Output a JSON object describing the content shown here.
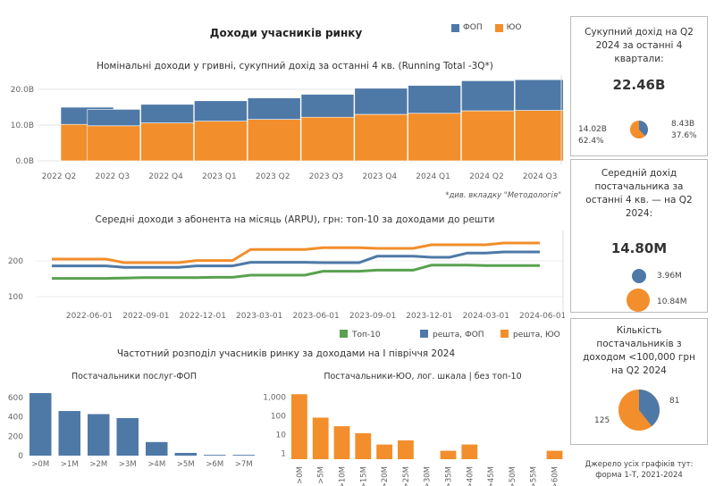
{
  "page": {
    "title": "Доходи учасників ринку",
    "legend": [
      {
        "label": "ФОП",
        "color": "#4e79a7"
      },
      {
        "label": "ЮО",
        "color": "#f28e2b"
      }
    ],
    "chart1_title": "Номінальні доходи у гривні, сукупний дохід за останні 4 кв. (Running Total -3Q*)",
    "chart1_note": "*див. вкладку \"Методологія\"",
    "chart2_title": "Середні доходи з  абонента на місяць (ARPU), грн: топ-10 за доходами до решти",
    "chart3_title": "Частотний розподіл учасників ринку за доходами на І півріччя 2024",
    "chart3a_title": "Постачальники послуг-ФОП",
    "chart3b_title": "Постачальники-ЮО, лог. шкала | без топ-10",
    "source": "Джерело усіх графіків тут: форма 1-Т, 2021-2024"
  },
  "kpi1": {
    "title": "Сукупний дохід на Q2 2024 за останні 4 квартали:",
    "value": "22.46B",
    "left_value": "14.02B",
    "left_pct": "62.4%",
    "right_value": "8.43B",
    "right_pct": "37.6%",
    "fop_share": 37.6
  },
  "kpi2": {
    "title": "Середній дохід постачальника за останні 4 кв. — на Q2 2024:",
    "value": "14.80M",
    "small_value": "3.96M",
    "large_value": "10.84M"
  },
  "kpi3": {
    "title": "Кількість постачальників з доходом <100,000 грн на Q2 2024",
    "fop_count": "81",
    "uo_count": "125"
  },
  "chart_data": [
    {
      "type": "bar",
      "stacked": true,
      "title": "Номінальні доходи у гривні, сукупний дохід за останні 4 кв. (Running Total -3Q*)",
      "categories": [
        "2022 Q2",
        "2022 Q3",
        "2022 Q4",
        "2023 Q1",
        "2023 Q2",
        "2023 Q3",
        "2023 Q4",
        "2024 Q1",
        "2024 Q2",
        "2024 Q3"
      ],
      "series": [
        {
          "name": "ЮО",
          "color": "#f28e2b",
          "values": [
            10.2,
            9.8,
            10.6,
            11.1,
            11.6,
            12.2,
            13.0,
            13.3,
            14.0,
            14.1
          ]
        },
        {
          "name": "ФОП",
          "color": "#4e79a7",
          "values": [
            4.8,
            4.6,
            5.2,
            5.7,
            6.0,
            6.4,
            7.3,
            7.8,
            8.4,
            8.6
          ]
        }
      ],
      "ylabel": "",
      "ytick_labels": [
        "0.0B",
        "10.0B",
        "20.0B"
      ],
      "yticks": [
        0,
        10,
        20
      ],
      "ylim": [
        0,
        23
      ]
    },
    {
      "type": "line",
      "title": "Середні доходи з  абонента на місяць (ARPU), грн: топ-10 за доходами до решти",
      "x_labels": [
        "2022-06-01",
        "2022-09-01",
        "2022-12-01",
        "2023-03-01",
        "2023-06-01",
        "2023-09-01",
        "2023-12-01",
        "2024-03-01",
        "2024-06-01"
      ],
      "x_points": [
        "2022-03",
        "2022-04",
        "2022-05",
        "2022-06",
        "2022-07",
        "2022-08",
        "2022-09",
        "2022-10",
        "2022-11",
        "2022-12",
        "2023-01",
        "2023-02",
        "2023-03",
        "2023-04",
        "2023-05",
        "2023-06",
        "2023-07",
        "2023-08",
        "2023-09",
        "2023-10",
        "2023-11",
        "2023-12",
        "2024-01",
        "2024-02",
        "2024-03",
        "2024-04",
        "2024-05",
        "2024-06"
      ],
      "series": [
        {
          "name": "Топ-10",
          "color": "#59a14f",
          "values": [
            151,
            151,
            151,
            151,
            152,
            153,
            153,
            153,
            153,
            154,
            154,
            160,
            160,
            160,
            160,
            171,
            171,
            171,
            174,
            174,
            174,
            188,
            188,
            188,
            187,
            187,
            187,
            187
          ]
        },
        {
          "name": "решта, ФОП",
          "color": "#4e79a7",
          "values": [
            186,
            186,
            186,
            186,
            182,
            182,
            182,
            182,
            186,
            186,
            186,
            196,
            196,
            196,
            196,
            195,
            195,
            195,
            213,
            213,
            213,
            210,
            210,
            222,
            222,
            225,
            225,
            225
          ]
        },
        {
          "name": "решта, ЮО",
          "color": "#f28e2b",
          "values": [
            205,
            205,
            205,
            205,
            195,
            195,
            195,
            195,
            201,
            201,
            201,
            232,
            232,
            232,
            232,
            237,
            237,
            237,
            235,
            235,
            235,
            245,
            245,
            245,
            245,
            250,
            250,
            250
          ]
        }
      ],
      "yticks": [
        100,
        200
      ],
      "ylim": [
        80,
        270
      ]
    },
    {
      "type": "bar",
      "title": "Постачальники послуг-ФОП",
      "categories": [
        ">0M",
        ">1M",
        ">2M",
        ">3M",
        ">4M",
        ">5M",
        ">6M",
        ">7M"
      ],
      "values": [
        645,
        460,
        428,
        387,
        140,
        28,
        8,
        8
      ],
      "color": "#4e79a7",
      "yticks": [
        0,
        200,
        400,
        600
      ],
      "ylim": [
        0,
        700
      ]
    },
    {
      "type": "bar",
      "log_scale": true,
      "title": "Постачальники-ЮО, лог. шкала | без топ-10",
      "categories": [
        ">0M",
        ">5M",
        ">10M",
        ">15M",
        ">20M",
        ">25M",
        ">30M",
        ">35M",
        ">40M",
        ">45M",
        ">50M",
        ">55M",
        ">60M"
      ],
      "values": [
        1400,
        80,
        28,
        12,
        3,
        5,
        0,
        1.4,
        3,
        0,
        0,
        0,
        1.4
      ],
      "color": "#f28e2b",
      "yticks": [
        1,
        10,
        100,
        1000
      ],
      "ytick_labels": [
        "1",
        "10",
        "100",
        "1,000"
      ],
      "ylim": [
        0.5,
        2000
      ]
    }
  ]
}
